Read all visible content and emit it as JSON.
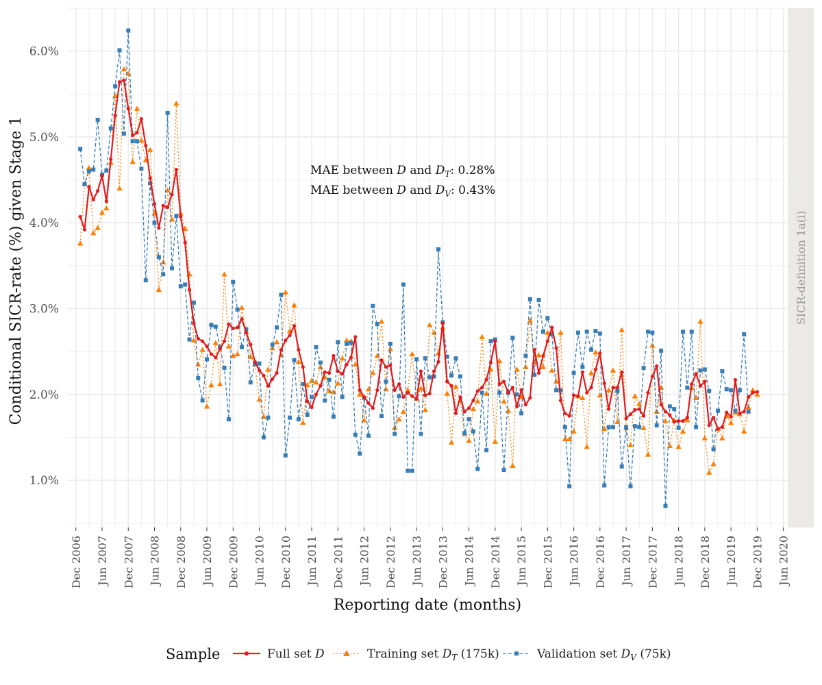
{
  "chart_data": {
    "type": "line",
    "ylabel": "Conditional SICR-rate (%) given Stage 1",
    "xlabel": "Reporting date (months)",
    "ylim": [
      0.45,
      6.5
    ],
    "yticks": [
      1.0,
      2.0,
      3.0,
      4.0,
      5.0,
      6.0
    ],
    "ytick_labels": [
      "1.0%",
      "2.0%",
      "3.0%",
      "4.0%",
      "5.0%",
      "6.0%"
    ],
    "xlim_months": [
      -2,
      163
    ],
    "xticks": [
      {
        "m": 0,
        "label": "Dec 2006"
      },
      {
        "m": 6,
        "label": "Jun 2007"
      },
      {
        "m": 12,
        "label": "Dec 2007"
      },
      {
        "m": 18,
        "label": "Jun 2008"
      },
      {
        "m": 24,
        "label": "Dec 2008"
      },
      {
        "m": 30,
        "label": "Jun 2009"
      },
      {
        "m": 36,
        "label": "Dec 2009"
      },
      {
        "m": 42,
        "label": "Jun 2010"
      },
      {
        "m": 48,
        "label": "Dec 2010"
      },
      {
        "m": 54,
        "label": "Jun 2011"
      },
      {
        "m": 60,
        "label": "Dec 2011"
      },
      {
        "m": 66,
        "label": "Jun 2012"
      },
      {
        "m": 72,
        "label": "Dec 2012"
      },
      {
        "m": 78,
        "label": "Jun 2013"
      },
      {
        "m": 84,
        "label": "Dec 2013"
      },
      {
        "m": 90,
        "label": "Jun 2014"
      },
      {
        "m": 96,
        "label": "Dec 2014"
      },
      {
        "m": 102,
        "label": "Jun 2015"
      },
      {
        "m": 108,
        "label": "Dec 2015"
      },
      {
        "m": 114,
        "label": "Jun 2016"
      },
      {
        "m": 120,
        "label": "Dec 2016"
      },
      {
        "m": 126,
        "label": "Jun 2017"
      },
      {
        "m": 132,
        "label": "Dec 2017"
      },
      {
        "m": 138,
        "label": "Jun 2018"
      },
      {
        "m": 144,
        "label": "Dec 2018"
      },
      {
        "m": 150,
        "label": "Jun 2019"
      },
      {
        "m": 156,
        "label": "Dec 2019"
      },
      {
        "m": 162,
        "label": "Jun 2020"
      }
    ],
    "x_start_month": 1,
    "x_note": "x values are months since Dec 2006 (1 = Jan 2007 ... 156 = Dec 2019)",
    "series": [
      {
        "name": "Full set D",
        "color": "#e41a1c",
        "marker": "circle",
        "dash": "solid",
        "values": [
          4.07,
          3.92,
          4.42,
          4.27,
          4.37,
          4.55,
          4.25,
          4.74,
          5.25,
          5.64,
          5.66,
          5.33,
          5.02,
          5.05,
          5.21,
          4.9,
          4.52,
          4.22,
          3.94,
          4.2,
          4.18,
          4.33,
          4.62,
          4.07,
          3.77,
          3.22,
          2.83,
          2.65,
          2.62,
          2.56,
          2.47,
          2.43,
          2.53,
          2.62,
          2.82,
          2.77,
          2.78,
          2.88,
          2.72,
          2.58,
          2.38,
          2.28,
          2.22,
          2.1,
          2.18,
          2.25,
          2.52,
          2.63,
          2.69,
          2.8,
          2.52,
          2.32,
          1.92,
          1.85,
          2.0,
          2.1,
          2.26,
          2.25,
          2.45,
          2.27,
          2.24,
          2.35,
          2.43,
          2.67,
          2.05,
          1.97,
          1.9,
          1.84,
          2.05,
          2.4,
          2.32,
          2.34,
          2.05,
          2.12,
          1.97,
          2.02,
          1.98,
          1.95,
          2.27,
          1.99,
          2.01,
          2.27,
          2.38,
          2.83,
          2.15,
          2.1,
          1.78,
          1.97,
          1.8,
          1.84,
          1.93,
          2.04,
          2.08,
          2.17,
          2.37,
          2.62,
          2.12,
          2.15,
          2.02,
          2.08,
          1.86,
          2.05,
          1.88,
          1.96,
          2.52,
          2.25,
          2.45,
          2.62,
          2.78,
          2.54,
          1.93,
          1.78,
          1.75,
          1.99,
          1.98,
          2.26,
          2.02,
          2.08,
          2.29,
          2.48,
          2.13,
          1.83,
          2.08,
          2.08,
          2.26,
          1.72,
          1.77,
          1.82,
          1.83,
          1.75,
          2.02,
          2.21,
          2.33,
          1.88,
          1.8,
          1.76,
          1.68,
          1.69,
          1.69,
          1.73,
          2.12,
          2.24,
          2.1,
          2.15,
          1.64,
          1.73,
          1.6,
          1.62,
          1.79,
          1.74,
          2.17,
          1.78,
          1.8,
          1.97,
          2.02,
          2.03
        ]
      },
      {
        "name": "Training set D_T (175k)",
        "color": "#ff7f00",
        "marker": "triangle",
        "dash": "dotted",
        "values": [
          3.76,
          4.45,
          4.64,
          3.88,
          3.94,
          4.12,
          4.17,
          4.7,
          5.48,
          4.4,
          5.79,
          5.74,
          4.71,
          5.33,
          4.96,
          4.73,
          4.85,
          4.11,
          3.22,
          3.54,
          4.38,
          4.04,
          5.39,
          4.11,
          3.93,
          3.4,
          2.63,
          2.35,
          2.52,
          1.86,
          2.11,
          2.6,
          2.12,
          3.4,
          2.56,
          2.45,
          2.47,
          3.01,
          2.73,
          2.44,
          2.35,
          1.94,
          1.74,
          2.29,
          2.54,
          2.61,
          2.46,
          3.19,
          2.74,
          3.04,
          2.38,
          1.67,
          2.11,
          2.16,
          2.14,
          2.32,
          2.2,
          2.04,
          2.03,
          2.13,
          2.42,
          2.63,
          2.62,
          2.35,
          2.0,
          1.7,
          2.06,
          2.25,
          2.45,
          2.85,
          2.06,
          2.53,
          1.61,
          1.71,
          1.8,
          2.05,
          2.47,
          1.95,
          2.07,
          1.82,
          2.81,
          2.72,
          2.48,
          2.78,
          2.01,
          1.44,
          2.09,
          1.93,
          1.54,
          1.46,
          1.83,
          1.92,
          2.67,
          2.01,
          2.29,
          1.45,
          2.39,
          1.92,
          1.81,
          1.17,
          2.29,
          1.97,
          2.32,
          2.86,
          2.38,
          2.46,
          2.32,
          2.72,
          2.28,
          2.15,
          2.72,
          1.48,
          1.48,
          1.57,
          1.98,
          1.96,
          1.39,
          2.25,
          2.49,
          1.99,
          1.6,
          2.05,
          2.28,
          1.68,
          2.75,
          1.61,
          1.41,
          1.98,
          1.89,
          1.61,
          1.3,
          2.57,
          1.8,
          2.08,
          1.69,
          1.4,
          1.7,
          1.39,
          1.57,
          1.7,
          2.08,
          1.96,
          2.85,
          1.49,
          1.09,
          1.19,
          1.6,
          1.49,
          1.75,
          1.67,
          1.79,
          1.77,
          1.57,
          1.85,
          2.05,
          2.0
        ]
      },
      {
        "name": "Validation set D_V (75k)",
        "color": "#377eb8",
        "marker": "square",
        "dash": "dashed",
        "values": [
          4.86,
          4.45,
          4.6,
          4.62,
          5.2,
          4.56,
          4.61,
          5.1,
          5.59,
          6.01,
          5.04,
          6.24,
          4.95,
          4.95,
          4.63,
          3.33,
          4.46,
          4.0,
          3.6,
          3.4,
          5.28,
          3.47,
          4.08,
          3.26,
          3.28,
          2.64,
          3.07,
          2.19,
          1.93,
          2.41,
          2.81,
          2.79,
          2.55,
          2.31,
          1.71,
          3.31,
          2.99,
          2.55,
          2.76,
          2.14,
          2.36,
          2.36,
          1.5,
          1.73,
          2.58,
          2.78,
          3.16,
          1.29,
          1.73,
          2.4,
          1.71,
          2.12,
          1.76,
          1.97,
          2.55,
          2.37,
          1.93,
          2.17,
          1.74,
          2.61,
          1.97,
          2.59,
          2.6,
          1.53,
          1.31,
          1.96,
          1.52,
          3.03,
          2.82,
          1.75,
          2.15,
          2.59,
          1.54,
          1.98,
          3.28,
          1.11,
          1.11,
          2.41,
          1.54,
          2.42,
          2.2,
          2.21,
          3.69,
          2.84,
          2.44,
          2.22,
          2.42,
          2.21,
          1.55,
          1.71,
          1.57,
          1.13,
          2.02,
          1.35,
          2.62,
          2.64,
          2.02,
          1.12,
          2.02,
          2.66,
          2.0,
          1.78,
          2.45,
          3.11,
          2.23,
          3.1,
          2.73,
          2.89,
          2.7,
          2.05,
          2.05,
          1.62,
          0.93,
          2.25,
          2.72,
          2.32,
          2.73,
          2.52,
          2.74,
          2.71,
          0.94,
          1.62,
          1.62,
          2.04,
          1.16,
          1.62,
          0.93,
          1.63,
          1.62,
          2.31,
          2.73,
          2.72,
          1.64,
          2.51,
          0.7,
          1.86,
          1.83,
          1.61,
          2.73,
          2.08,
          2.73,
          1.62,
          2.28,
          2.29,
          2.04,
          1.36,
          1.81,
          2.27,
          2.06,
          2.05,
          1.81,
          2.05,
          2.7,
          1.8
        ]
      }
    ]
  },
  "annotation": {
    "line1_prefix": "MAE between ",
    "line1_vars": [
      "D",
      "D"
    ],
    "line1_sub": "T",
    "line1_value": ": 0.28%",
    "line2_prefix": "MAE between ",
    "line2_sub": "V",
    "line2_value": ": 0.43%",
    "and_word": " and "
  },
  "strip_label": "SICR-definition 1a(i)",
  "legend": {
    "title": "Sample",
    "items": [
      {
        "label": "Full set ",
        "var": "D",
        "sub": "",
        "suffix": ""
      },
      {
        "label": "Training set ",
        "var": "D",
        "sub": "T",
        "suffix": " (175k)"
      },
      {
        "label": "Validation set ",
        "var": "D",
        "sub": "V",
        "suffix": " (75k)"
      }
    ]
  }
}
